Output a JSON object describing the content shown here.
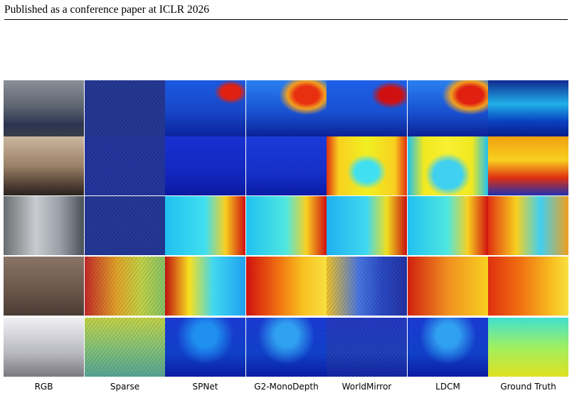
{
  "header": {
    "text": "Published as a conference paper at ICLR 2026"
  },
  "figure": {
    "column_labels": [
      "RGB",
      "Sparse",
      "SPNet",
      "G2-MonoDepth",
      "WorldMirror",
      "LDCM",
      "Ground Truth"
    ]
  }
}
